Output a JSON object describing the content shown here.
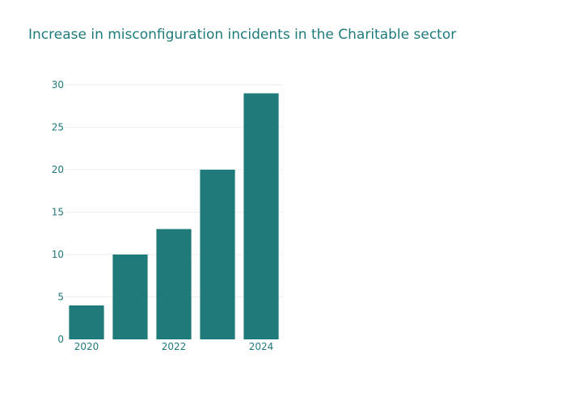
{
  "chart_data": {
    "type": "bar",
    "title": "Increase in misconfiguration incidents in the Charitable sector",
    "categories": [
      2020,
      2021,
      2022,
      2023,
      2024
    ],
    "values": [
      4,
      10,
      13,
      20,
      29
    ],
    "x_tick_labels": [
      "2020",
      "2022",
      "2024"
    ],
    "y_ticks": [
      0,
      5,
      10,
      15,
      20,
      25,
      30
    ],
    "xlabel": "",
    "ylabel": "",
    "ylim": [
      0,
      30
    ],
    "grid": true,
    "legend": "none",
    "bar_color": "#1f7a7a",
    "text_color": "#1f7a7a"
  }
}
